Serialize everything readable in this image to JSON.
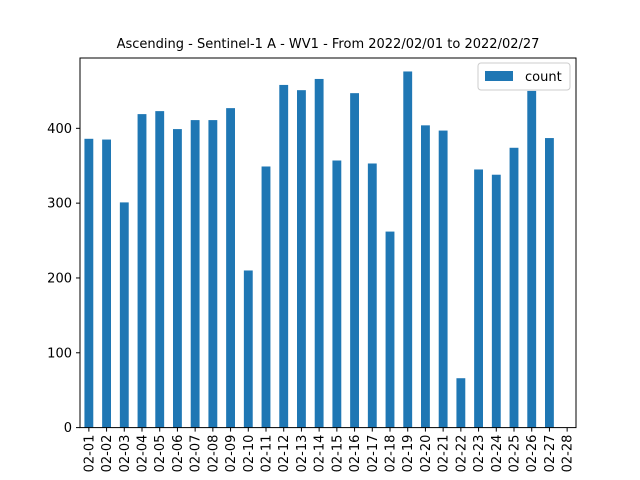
{
  "chart_data": {
    "type": "bar",
    "title": "Ascending - Sentinel-1 A - WV1 - From 2022/02/01 to 2022/02/27",
    "xlabel": "",
    "ylabel": "",
    "categories": [
      "02-01",
      "02-02",
      "02-03",
      "02-04",
      "02-05",
      "02-06",
      "02-07",
      "02-08",
      "02-09",
      "02-10",
      "02-11",
      "02-12",
      "02-13",
      "02-14",
      "02-15",
      "02-16",
      "02-17",
      "02-18",
      "02-19",
      "02-20",
      "02-21",
      "02-22",
      "02-23",
      "02-24",
      "02-25",
      "02-26",
      "02-27",
      "02-28"
    ],
    "series": [
      {
        "name": "count",
        "color": "#1f77b4",
        "values": [
          386,
          385,
          301,
          419,
          423,
          399,
          411,
          411,
          427,
          210,
          349,
          458,
          451,
          466,
          357,
          447,
          353,
          262,
          476,
          404,
          397,
          66,
          345,
          338,
          374,
          450,
          387,
          0
        ]
      }
    ],
    "ylim": [
      0,
      494
    ],
    "yticks": [
      0,
      100,
      200,
      300,
      400
    ],
    "grid": false,
    "legend_position": "top-right"
  }
}
